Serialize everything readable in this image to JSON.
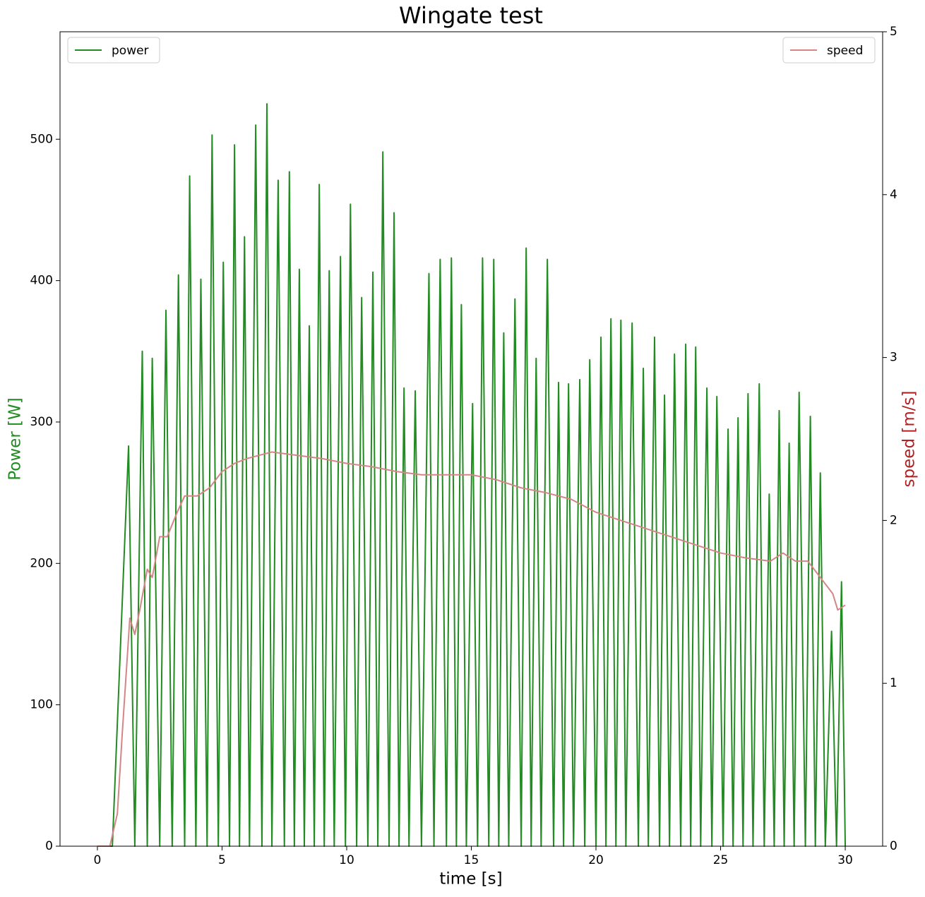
{
  "chart_data": {
    "type": "line",
    "title": "Wingate test",
    "x_label": "time [s]",
    "y_label": "Power [W]",
    "y2_label": "speed [m/s]",
    "y_label_color": "#228b22",
    "y2_label_color": "#b22222",
    "xlim": [
      -1.5,
      31.5
    ],
    "xticks": [
      0,
      5,
      10,
      15,
      20,
      25,
      30
    ],
    "ylim": [
      0,
      576
    ],
    "yticks": [
      0,
      100,
      200,
      300,
      400,
      500
    ],
    "y2lim": [
      0,
      5
    ],
    "y2ticks": [
      0,
      1,
      2,
      3,
      4,
      5
    ],
    "series": [
      {
        "name": "power",
        "color": "#228b22",
        "legend": "upper left",
        "x": [
          0,
          0.6,
          1.25,
          1.5,
          1.8,
          2.0,
          2.2,
          2.5,
          2.75,
          3.0,
          3.25,
          3.5,
          3.7,
          3.95,
          4.15,
          4.4,
          4.6,
          4.85,
          5.05,
          5.3,
          5.5,
          5.7,
          5.9,
          6.1,
          6.35,
          6.6,
          6.8,
          7.0,
          7.25,
          7.5,
          7.7,
          7.9,
          8.1,
          8.3,
          8.5,
          8.7,
          8.9,
          9.1,
          9.3,
          9.5,
          9.75,
          9.95,
          10.15,
          10.4,
          10.6,
          10.85,
          11.05,
          11.25,
          11.45,
          11.7,
          11.9,
          12.1,
          12.3,
          12.5,
          12.75,
          13.0,
          13.3,
          13.5,
          13.75,
          14.0,
          14.2,
          14.4,
          14.6,
          14.8,
          15.05,
          15.25,
          15.45,
          15.7,
          15.9,
          16.1,
          16.3,
          16.5,
          16.75,
          17.0,
          17.2,
          17.4,
          17.6,
          17.8,
          18.05,
          18.3,
          18.5,
          18.7,
          18.9,
          19.1,
          19.35,
          19.55,
          19.75,
          20.0,
          20.2,
          20.4,
          20.6,
          20.8,
          21.0,
          21.2,
          21.45,
          21.7,
          21.9,
          22.1,
          22.35,
          22.55,
          22.75,
          22.95,
          23.15,
          23.4,
          23.6,
          23.8,
          24.0,
          24.2,
          24.45,
          24.65,
          24.85,
          25.1,
          25.3,
          25.5,
          25.7,
          25.9,
          26.1,
          26.3,
          26.55,
          26.75,
          26.95,
          27.15,
          27.35,
          27.55,
          27.75,
          27.95,
          28.15,
          28.4,
          28.6,
          28.8,
          29.0,
          29.2,
          29.45,
          29.65,
          29.85,
          30.0
        ],
        "values": [
          0,
          0,
          283,
          0,
          350,
          0,
          345,
          0,
          379,
          0,
          404,
          0,
          474,
          0,
          401,
          0,
          503,
          0,
          413,
          0,
          496,
          0,
          431,
          0,
          510,
          0,
          525,
          0,
          471,
          0,
          477,
          0,
          408,
          0,
          368,
          0,
          468,
          0,
          407,
          0,
          417,
          0,
          454,
          0,
          388,
          0,
          406,
          0,
          491,
          0,
          448,
          0,
          324,
          0,
          322,
          0,
          405,
          0,
          415,
          0,
          416,
          0,
          383,
          0,
          313,
          0,
          416,
          0,
          415,
          0,
          363,
          0,
          387,
          0,
          423,
          0,
          345,
          0,
          415,
          0,
          328,
          0,
          327,
          0,
          330,
          0,
          344,
          0,
          360,
          0,
          373,
          0,
          372,
          0,
          370,
          0,
          338,
          0,
          360,
          0,
          319,
          0,
          348,
          0,
          355,
          0,
          353,
          0,
          324,
          0,
          318,
          0,
          295,
          0,
          303,
          0,
          320,
          0,
          327,
          0,
          249,
          0,
          308,
          0,
          285,
          0,
          321,
          0,
          304,
          0,
          264,
          0,
          152,
          0,
          187,
          0
        ]
      },
      {
        "name": "speed",
        "color": "#d48585",
        "axis": "y2",
        "legend": "upper right",
        "x": [
          0,
          0.5,
          0.8,
          1.0,
          1.3,
          1.5,
          1.7,
          2.0,
          2.2,
          2.5,
          2.8,
          3.2,
          3.5,
          4.0,
          4.5,
          5.0,
          5.5,
          6.0,
          7.0,
          8.0,
          9.0,
          10.0,
          11.0,
          12.0,
          13.0,
          14.0,
          15.0,
          16.0,
          17.0,
          18.0,
          19.0,
          20.0,
          21.0,
          22.0,
          23.0,
          24.0,
          25.0,
          26.0,
          27.0,
          27.5,
          28.0,
          28.5,
          29.0,
          29.5,
          29.7,
          30.0
        ],
        "values": [
          0,
          0,
          0.2,
          0.7,
          1.4,
          1.3,
          1.45,
          1.7,
          1.65,
          1.9,
          1.9,
          2.05,
          2.15,
          2.15,
          2.2,
          2.3,
          2.35,
          2.38,
          2.42,
          2.4,
          2.38,
          2.35,
          2.33,
          2.3,
          2.28,
          2.28,
          2.28,
          2.25,
          2.2,
          2.17,
          2.13,
          2.05,
          2.0,
          1.95,
          1.9,
          1.85,
          1.8,
          1.77,
          1.75,
          1.8,
          1.75,
          1.75,
          1.65,
          1.55,
          1.45,
          1.48
        ]
      }
    ]
  }
}
